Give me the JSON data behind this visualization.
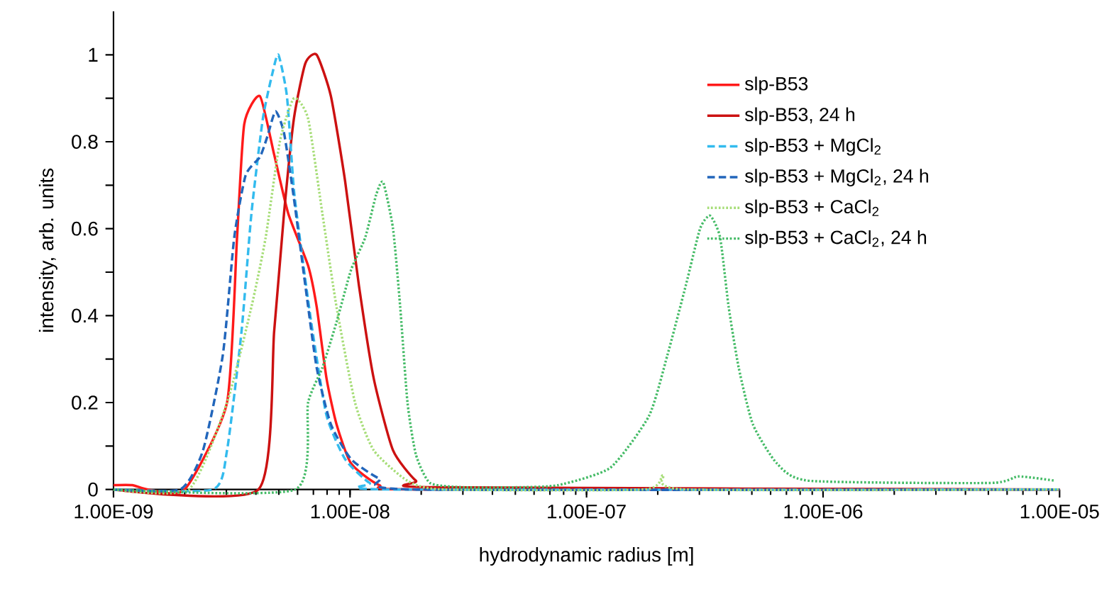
{
  "chart_data": {
    "type": "line",
    "xlabel": "hydrodynamic radius [m]",
    "ylabel": "intensity, arb. units",
    "log": "x",
    "xlim": [
      1e-09,
      1e-05
    ],
    "ylim": [
      0,
      1.1
    ],
    "xticks": [
      {
        "value": 1e-09,
        "label": "1.00E-09"
      },
      {
        "value": 1e-08,
        "label": "1.00E-08"
      },
      {
        "value": 1e-07,
        "label": "1.00E-07"
      },
      {
        "value": 1e-06,
        "label": "1.00E-06"
      },
      {
        "value": 1e-05,
        "label": "1.00E-05"
      }
    ],
    "yticks": [
      0,
      {
        "value": 0.1,
        "label": null
      },
      0.2,
      {
        "value": 0.3,
        "label": null
      },
      0.4,
      {
        "value": 0.5,
        "label": null
      },
      0.6,
      {
        "value": 0.7,
        "label": null
      },
      0.8,
      {
        "value": 0.9,
        "label": null
      },
      1
    ],
    "grid": false,
    "legend": "right",
    "marker": "none",
    "series": [
      {
        "name": "slp-B53",
        "color": "#ff1a1a",
        "line_style": "solid",
        "x": [
          1e-09,
          1.2e-09,
          1.4e-09,
          2e-09,
          3.02e-09,
          3.33e-09,
          3.57e-09,
          4.16e-09,
          4.78e-09,
          5.48e-09,
          6.65e-09,
          7.23e-09,
          7.96e-09,
          8.77e-09,
          1.01e-08,
          1.33e-08,
          2e-08,
          1e-05
        ],
        "values": [
          0.01,
          0.01,
          0,
          0,
          0.2,
          0.58,
          0.84,
          0.905,
          0.77,
          0.635,
          0.515,
          0.42,
          0.255,
          0.15,
          0.06,
          0.01,
          0,
          0
        ]
      },
      {
        "name": "slp-B53, 24 h",
        "color": "#cc1111",
        "line_style": "solid",
        "x": [
          1e-09,
          4.1e-09,
          4.78e-09,
          5.26e-09,
          5.79e-09,
          6.47e-09,
          7.23e-09,
          8.3e-09,
          9.53e-09,
          1.09e-08,
          1.26e-08,
          1.52e-08,
          1.9e-08,
          2.31e-08,
          1e-05
        ],
        "values": [
          0,
          0,
          0.365,
          0.635,
          0.853,
          0.98,
          1.0,
          0.905,
          0.71,
          0.47,
          0.255,
          0.09,
          0.02,
          0.005,
          0
        ]
      },
      {
        "name": "slp-B53 + MgCl$_{2}$",
        "color": "#33bbee",
        "line_style": "dashed",
        "x": [
          1e-09,
          2.63e-09,
          3.02e-09,
          3.48e-09,
          3.83e-09,
          4.28e-09,
          4.71e-09,
          4.98e-09,
          5.41e-09,
          5.79e-09,
          6.3e-09,
          6.94e-09,
          7.96e-09,
          9.53e-09,
          1.21e-08,
          1.52e-08,
          1e-05
        ],
        "values": [
          0,
          0,
          0.09,
          0.365,
          0.635,
          0.853,
          0.96,
          1.0,
          0.905,
          0.69,
          0.53,
          0.365,
          0.17,
          0.07,
          0.015,
          0,
          0
        ]
      },
      {
        "name": "slp-B53 + MgCl$_{2}$, 24 h",
        "color": "#2266bb",
        "line_style": "dashed",
        "x": [
          1e-09,
          1.91e-09,
          2.39e-09,
          2.9e-09,
          3.24e-09,
          3.62e-09,
          4.16e-09,
          4.46e-09,
          4.84e-09,
          5.26e-09,
          5.79e-09,
          6.47e-09,
          7.23e-09,
          8.3e-09,
          1.01e-08,
          1.33e-08,
          1.9e-08,
          1e-05
        ],
        "values": [
          0,
          0,
          0.09,
          0.31,
          0.58,
          0.723,
          0.765,
          0.81,
          0.87,
          0.82,
          0.67,
          0.47,
          0.28,
          0.15,
          0.07,
          0.025,
          0,
          0
        ]
      },
      {
        "name": "slp-B53 + CaCl$_{2}$",
        "color": "#a6dd77",
        "line_style": "dotted",
        "x": [
          1e-09,
          2.08e-09,
          3.02e-09,
          3.83e-09,
          4.4e-09,
          5.05e-09,
          5.79e-09,
          6.65e-09,
          7.64e-09,
          8.77e-09,
          1.05e-08,
          1.26e-08,
          1.75e-08,
          2.5e-08,
          1.74e-07,
          2.11e-07,
          2.63e-07,
          1e-05
        ],
        "values": [
          0,
          0,
          0.2,
          0.42,
          0.58,
          0.8,
          0.9,
          0.853,
          0.635,
          0.42,
          0.2,
          0.09,
          0.02,
          0,
          0,
          0.033,
          0,
          0
        ]
      },
      {
        "name": "slp-B53 + CaCl$_{2}$, 24 h",
        "color": "#44bb66",
        "line_style": "dotted",
        "x": [
          1e-09,
          5.87e-09,
          6.65e-09,
          7.64e-09,
          8.77e-09,
          1.01e-08,
          1.16e-08,
          1.29e-08,
          1.38e-08,
          1.52e-08,
          1.63e-08,
          1.75e-08,
          1.9e-08,
          2.18e-08,
          3e-08,
          5e-08,
          7.59e-08,
          1.26e-07,
          1.84e-07,
          2.2e-07,
          2.63e-07,
          3.02e-07,
          3.33e-07,
          3.67e-07,
          3.99e-07,
          4.4e-07,
          5.05e-07,
          6.38e-07,
          8.77e-07,
          5.08e-06,
          6.7e-06,
          9.6e-06
        ],
        "values": [
          0,
          0,
          0.2,
          0.28,
          0.385,
          0.505,
          0.58,
          0.678,
          0.707,
          0.6,
          0.42,
          0.2,
          0.08,
          0.015,
          0.005,
          0.005,
          0.01,
          0.05,
          0.17,
          0.31,
          0.47,
          0.6,
          0.63,
          0.58,
          0.42,
          0.28,
          0.15,
          0.06,
          0.02,
          0.015,
          0.03,
          0.02
        ]
      }
    ]
  }
}
